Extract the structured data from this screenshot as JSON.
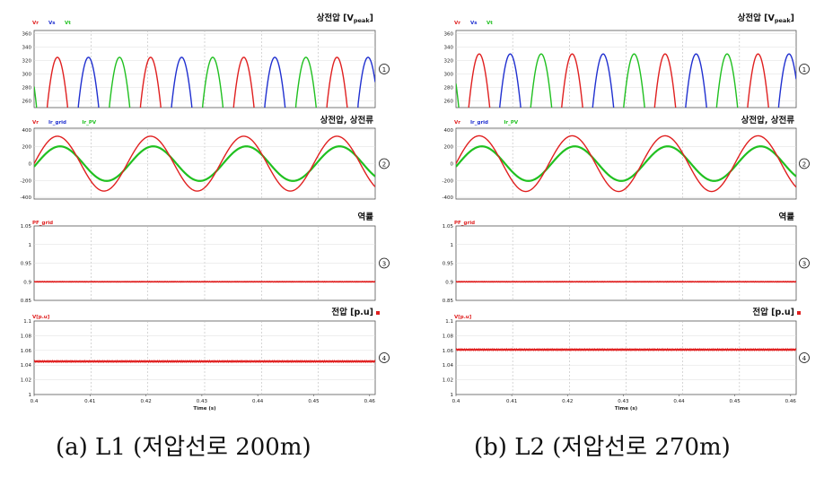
{
  "chart_data": [
    {
      "panel": "a",
      "caption": "(a) L1 (저압선로 200m)",
      "x_ticks": [
        "0.4",
        "0.41",
        "0.42",
        "0.43",
        "0.44",
        "0.45",
        "0.46"
      ],
      "x_range": [
        0.4,
        0.461
      ],
      "xlabel": "Time (s)",
      "subplots": [
        {
          "index": "①",
          "type": "line",
          "title": "상전압 [V",
          "title_sub": "peak",
          "title_end": "]",
          "legend": [
            {
              "name": "Vr",
              "color": "#e02020"
            },
            {
              "name": "Vs",
              "color": "#2030d0"
            },
            {
              "name": "Vt",
              "color": "#20c020"
            }
          ],
          "y_ticks": [
            "360",
            "340",
            "320",
            "300",
            "280",
            "260"
          ],
          "ylim": [
            250,
            365
          ],
          "series": [
            {
              "name": "Vr",
              "color": "#e02020",
              "kind": "rectified",
              "amplitude": 325,
              "freq": 60,
              "phase_deg": 0
            },
            {
              "name": "Vs",
              "color": "#2030d0",
              "kind": "rectified",
              "amplitude": 325,
              "freq": 60,
              "phase_deg": -120
            },
            {
              "name": "Vt",
              "color": "#20c020",
              "kind": "rectified",
              "amplitude": 325,
              "freq": 60,
              "phase_deg": 120
            }
          ]
        },
        {
          "index": "②",
          "type": "line",
          "title": "상전압, 상전류",
          "legend": [
            {
              "name": "Vr",
              "color": "#e02020"
            },
            {
              "name": "Ir_grid",
              "color": "#2030d0"
            },
            {
              "name": "Ir_PV",
              "color": "#20c020"
            }
          ],
          "y_ticks": [
            "400",
            "200",
            "0",
            "-200",
            "-400"
          ],
          "ylim": [
            -420,
            420
          ],
          "series": [
            {
              "name": "Ir_PV",
              "color": "#20c020",
              "kind": "sine",
              "amplitude": 205,
              "freq": 60,
              "phase_deg": -10
            },
            {
              "name": "Vr",
              "color": "#e02020",
              "kind": "sine",
              "amplitude": 325,
              "freq": 60,
              "phase_deg": 0
            }
          ]
        },
        {
          "index": "③",
          "type": "line",
          "title": "역률",
          "legend": [
            {
              "name": "PF_grid",
              "color": "#e02020"
            }
          ],
          "y_ticks": [
            "1.05",
            "1",
            "0.95",
            "0.9",
            "0.85"
          ],
          "ylim": [
            0.85,
            1.05
          ],
          "series": [
            {
              "name": "PF_grid",
              "color": "#e02020",
              "kind": "constant",
              "value": 0.9
            }
          ]
        },
        {
          "index": "④",
          "type": "line",
          "title": "전압 [p.u]",
          "legend": [
            {
              "name": "V[p.u]",
              "color": "#e02020"
            }
          ],
          "y_ticks": [
            "1.1",
            "1.08",
            "1.06",
            "1.04",
            "1.02",
            "1"
          ],
          "ylim": [
            1.0,
            1.1
          ],
          "series": [
            {
              "name": "V[p.u]",
              "color": "#e02020",
              "kind": "constant",
              "value": 1.045
            }
          ]
        }
      ]
    },
    {
      "panel": "b",
      "caption": "(b) L2 (저압선로 270m)",
      "x_ticks": [
        "0.4",
        "0.41",
        "0.42",
        "0.43",
        "0.44",
        "0.45",
        "0.46"
      ],
      "x_range": [
        0.4,
        0.461
      ],
      "xlabel": "Time (s)",
      "subplots": [
        {
          "index": "①",
          "type": "line",
          "title": "상전압 [V",
          "title_sub": "peak",
          "title_end": "]",
          "legend": [
            {
              "name": "Vr",
              "color": "#e02020"
            },
            {
              "name": "Vs",
              "color": "#2030d0"
            },
            {
              "name": "Vt",
              "color": "#20c020"
            }
          ],
          "y_ticks": [
            "360",
            "340",
            "320",
            "300",
            "280",
            "260"
          ],
          "ylim": [
            250,
            365
          ],
          "series": [
            {
              "name": "Vr",
              "color": "#e02020",
              "kind": "rectified",
              "amplitude": 330,
              "freq": 60,
              "phase_deg": 0
            },
            {
              "name": "Vs",
              "color": "#2030d0",
              "kind": "rectified",
              "amplitude": 330,
              "freq": 60,
              "phase_deg": -120
            },
            {
              "name": "Vt",
              "color": "#20c020",
              "kind": "rectified",
              "amplitude": 330,
              "freq": 60,
              "phase_deg": 120
            }
          ]
        },
        {
          "index": "②",
          "type": "line",
          "title": "상전압, 상전류",
          "legend": [
            {
              "name": "Vr",
              "color": "#e02020"
            },
            {
              "name": "Ir_grid",
              "color": "#2030d0"
            },
            {
              "name": "Ir_PV",
              "color": "#20c020"
            }
          ],
          "y_ticks": [
            "400",
            "200",
            "0",
            "-200",
            "-400"
          ],
          "ylim": [
            -420,
            420
          ],
          "series": [
            {
              "name": "Ir_PV",
              "color": "#20c020",
              "kind": "sine",
              "amplitude": 205,
              "freq": 60,
              "phase_deg": -10
            },
            {
              "name": "Vr",
              "color": "#e02020",
              "kind": "sine",
              "amplitude": 330,
              "freq": 60,
              "phase_deg": 0
            }
          ]
        },
        {
          "index": "③",
          "type": "line",
          "title": "역률",
          "legend": [
            {
              "name": "PF_grid",
              "color": "#e02020"
            }
          ],
          "y_ticks": [
            "1.05",
            "1",
            "0.95",
            "0.9",
            "0.85"
          ],
          "ylim": [
            0.85,
            1.05
          ],
          "series": [
            {
              "name": "PF_grid",
              "color": "#e02020",
              "kind": "constant",
              "value": 0.9
            }
          ]
        },
        {
          "index": "④",
          "type": "line",
          "title": "전압 [p.u]",
          "legend": [
            {
              "name": "V[p.u]",
              "color": "#e02020"
            }
          ],
          "y_ticks": [
            "1.1",
            "1.08",
            "1.06",
            "1.04",
            "1.02",
            "1"
          ],
          "ylim": [
            1.0,
            1.1
          ],
          "series": [
            {
              "name": "V[p.u]",
              "color": "#e02020",
              "kind": "constant",
              "value": 1.061
            }
          ]
        }
      ]
    }
  ]
}
